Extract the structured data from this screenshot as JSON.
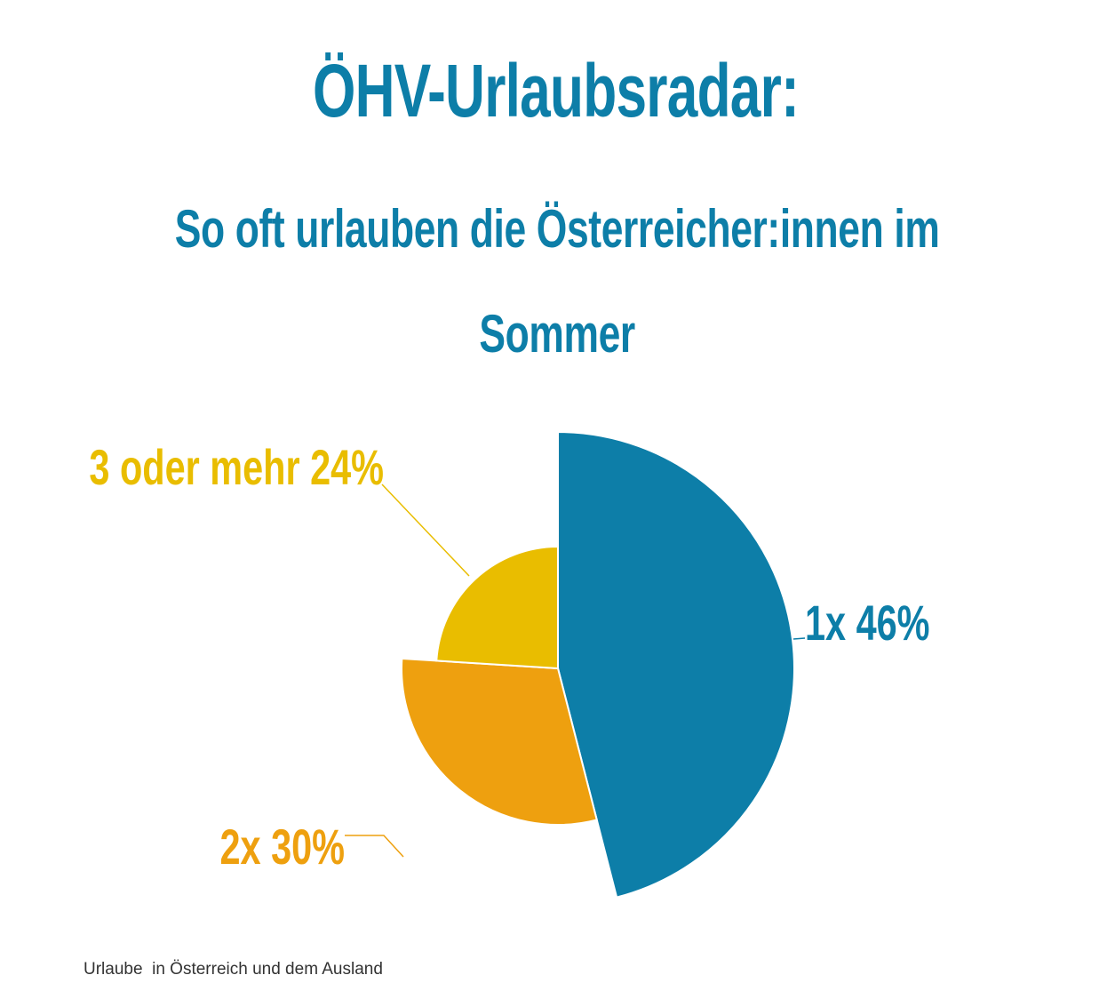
{
  "chart_data": {
    "type": "pie",
    "title": "ÖHV-Urlaubsradar:",
    "subtitle_line1": "So oft urlauben die Österreicher:innen im",
    "subtitle_line2": "Sommer",
    "categories": [
      "1x",
      "2x",
      "3 oder mehr"
    ],
    "values": [
      46,
      30,
      24
    ],
    "unit": "%",
    "labels": [
      "1x 46%",
      "2x 30%",
      "3 oder mehr 24%"
    ],
    "colors": [
      "#0d7ea8",
      "#eea00f",
      "#e9bd00"
    ],
    "footnote": "Urlaube  in Österreich und dem Ausland"
  }
}
